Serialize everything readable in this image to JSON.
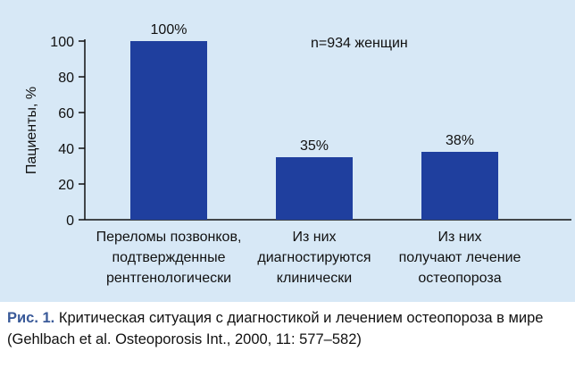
{
  "chart_data": {
    "type": "bar",
    "categories": [
      [
        "Переломы позвонков,",
        "подтвержденные",
        "рентгенологически"
      ],
      [
        "Из них",
        "диагностируются",
        "клинически"
      ],
      [
        "Из них",
        "получают лечение",
        "остеопороза"
      ]
    ],
    "values": [
      100,
      35,
      38
    ],
    "data_labels": [
      "100%",
      "35%",
      "38%"
    ],
    "ylabel": "Пациенты, %",
    "ylim": [
      0,
      100
    ],
    "yticks": [
      0,
      20,
      40,
      60,
      80,
      100
    ],
    "annotation": "n=934 женщин",
    "bar_color": "#1f3f9e",
    "grid": false
  },
  "caption": {
    "prefix": "Рис. 1.",
    "text": "Критическая ситуация с диагностикой и лечением остеопороза в мире (Gehlbach et al. Osteoporosis Int., 2000, 11: 577–582)"
  }
}
